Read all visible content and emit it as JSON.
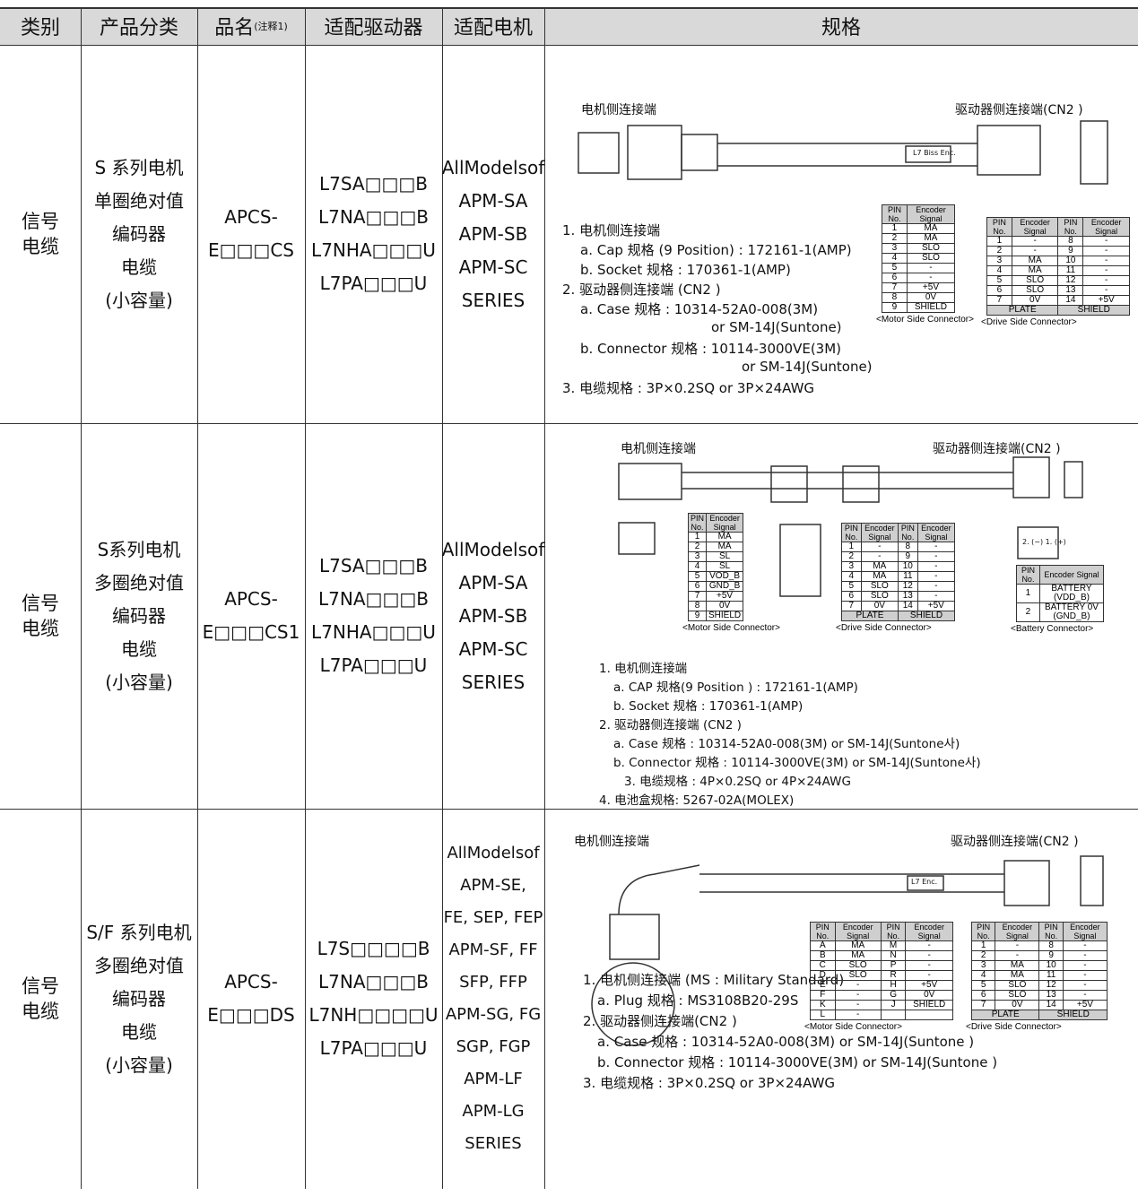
{
  "header": {
    "columns": [
      "类别",
      "产品分类",
      "品名",
      "适配驱动器",
      "适配电机",
      "规格"
    ],
    "note": "(注释1)"
  },
  "rows": [
    {
      "category": [
        "信号",
        "电缆"
      ],
      "product_class": [
        "S 系列电机",
        "单圈绝对值",
        "编码器",
        "电缆",
        "(小容量)"
      ],
      "name": [
        "APCS-",
        "E□□□CS"
      ],
      "drivers": [
        "L7SA□□□B",
        "L7NA□□□B",
        "L7NHA□□□U",
        "L7PA□□□U"
      ],
      "motors": [
        "AllModelsof",
        "APM-SA",
        "APM-SB",
        "APM-SC",
        "SERIES"
      ],
      "spec": {
        "motor_side": "电机侧连接端",
        "drive_side": "驱动器侧连接端(CN2 )",
        "cable_tag": "L7 Biss Enc.",
        "notes": [
          "1. 电机侧连接端",
          "a. Cap 规格 (9 Position) : 172161-1(AMP)",
          "b. Socket 规格 : 170361-1(AMP)",
          "2. 驱动器侧连接端 (CN2 )",
          "a. Case 规格 : 10314-52A0-008(3M)",
          "or SM-14J(Suntone)",
          "b. Connector 规格 : 10114-3000VE(3M)",
          "or SM-14J(Suntone)",
          "3. 电缆规格 : 3P×0.2SQ or 3P×24AWG"
        ],
        "tables": [
          {
            "header": [
              "PIN No.",
              "Encoder Signal"
            ],
            "rows": [
              [
                "1",
                "MA"
              ],
              [
                "2",
                "MA"
              ],
              [
                "3",
                "SLO"
              ],
              [
                "4",
                "SLO"
              ],
              [
                "5",
                "-"
              ],
              [
                "6",
                "-"
              ],
              [
                "7",
                "+5V"
              ],
              [
                "8",
                "0V"
              ],
              [
                "9",
                "SHIELD"
              ]
            ],
            "caption": "<Motor Side Connector>"
          },
          {
            "header": [
              "PIN No.",
              "Encoder Signal",
              "PIN No.",
              "Encoder Signal"
            ],
            "rows": [
              [
                "1",
                "-",
                "8",
                "-"
              ],
              [
                "2",
                "-",
                "9",
                "-"
              ],
              [
                "3",
                "MA",
                "10",
                "-"
              ],
              [
                "4",
                "MA",
                "11",
                "-"
              ],
              [
                "5",
                "SLO",
                "12",
                "-"
              ],
              [
                "6",
                "SLO",
                "13",
                "-"
              ],
              [
                "7",
                "0V",
                "14",
                "+5V"
              ]
            ],
            "footer": [
              "PLATE",
              "SHIELD"
            ],
            "caption": "<Drive Side Connector>"
          }
        ]
      }
    },
    {
      "category": [
        "信号",
        "电缆"
      ],
      "product_class": [
        "S系列电机",
        "多圈绝对值",
        "编码器",
        "电缆",
        "(小容量)"
      ],
      "name": [
        "APCS-",
        "E□□□CS1"
      ],
      "drivers": [
        "L7SA□□□B",
        "L7NA□□□B",
        "L7NHA□□□U",
        "L7PA□□□U"
      ],
      "motors": [
        "AllModelsof",
        "APM-SA",
        "APM-SB",
        "APM-SC",
        "SERIES"
      ],
      "spec": {
        "motor_side": "电机侧连接端",
        "drive_side": "驱动器侧连接端(CN2 )",
        "cable_tag": "2. (−) 1. (+)",
        "notes": [
          "1. 电机侧连接端",
          "a. CAP 规格(9 Position ) : 172161-1(AMP)",
          "b. Socket 规格 : 170361-1(AMP)",
          "2. 驱动器侧连接端 (CN2 )",
          "a. Case 规格 : 10314-52A0-008(3M) or SM-14J(Suntone사)",
          "b. Connector 规格 : 10114-3000VE(3M) or SM-14J(Suntone사)",
          "3. 电缆规格 : 4P×0.2SQ or 4P×24AWG",
          "4. 电池盒规格: 5267-02A(MOLEX)"
        ],
        "tables": [
          {
            "header": [
              "PIN No.",
              "Encoder Signal"
            ],
            "rows": [
              [
                "1",
                "MA"
              ],
              [
                "2",
                "MA"
              ],
              [
                "3",
                "SL"
              ],
              [
                "4",
                "SL"
              ],
              [
                "5",
                "VOD_B"
              ],
              [
                "6",
                "GND_B"
              ],
              [
                "7",
                "+5V"
              ],
              [
                "8",
                "0V"
              ],
              [
                "9",
                "SHIELD"
              ]
            ],
            "caption": "<Motor Side Connector>"
          },
          {
            "header": [
              "PIN No.",
              "Encoder Signal",
              "PIN No.",
              "Encoder Signal"
            ],
            "rows": [
              [
                "1",
                "-",
                "8",
                "-"
              ],
              [
                "2",
                "-",
                "9",
                "-"
              ],
              [
                "3",
                "MA",
                "10",
                "-"
              ],
              [
                "4",
                "MA",
                "11",
                "-"
              ],
              [
                "5",
                "SLO",
                "12",
                "-"
              ],
              [
                "6",
                "SLO",
                "13",
                "-"
              ],
              [
                "7",
                "0V",
                "14",
                "+5V"
              ]
            ],
            "footer": [
              "PLATE",
              "SHIELD"
            ],
            "caption": "<Drive Side Connector>"
          },
          {
            "header": [
              "PIN No.",
              "Encoder Signal"
            ],
            "rows": [
              [
                "1",
                "BATTERY (VDD_B)"
              ],
              [
                "2",
                "BATTERY 0V (GND_B)"
              ]
            ],
            "caption": "<Battery Connector>"
          }
        ]
      }
    },
    {
      "category": [
        "信号",
        "电缆"
      ],
      "product_class": [
        "S/F 系列电机",
        "多圈绝对值",
        "编码器",
        "电缆",
        "(小容量)"
      ],
      "name": [
        "APCS-",
        "E□□□DS"
      ],
      "drivers": [
        "L7S□□□□B",
        "L7NA□□□B",
        "L7NH□□□□U",
        "L7PA□□□U"
      ],
      "motors": [
        "AllModelsof",
        "APM-SE,",
        "FE, SEP, FEP",
        "APM-SF, FF",
        "SFP, FFP",
        "APM-SG, FG",
        "SGP, FGP",
        "APM-LF",
        "APM-LG",
        "SERIES"
      ],
      "spec": {
        "motor_side": "电机侧连接端",
        "drive_side": "驱动器侧连接端(CN2 )",
        "cable_tag": "L7 Enc.",
        "notes": [
          "1. 电机侧连接端 (MS : Military Standard)",
          "a. Plug 规格 : MS3108B20-29S",
          "2. 驱动器侧连接端(CN2 )",
          "a. Case 规格 : 10314-52A0-008(3M) or SM-14J(Suntone )",
          "b. Connector 规格 : 10114-3000VE(3M) or SM-14J(Suntone )",
          "3. 电缆规格 : 3P×0.2SQ or 3P×24AWG"
        ],
        "tables": [
          {
            "header": [
              "PIN No.",
              "Encoder Signal",
              "PIN No.",
              "Encoder Signal"
            ],
            "rows": [
              [
                "A",
                "MA",
                "M",
                "-"
              ],
              [
                "B",
                "MA",
                "N",
                "-"
              ],
              [
                "C",
                "SLO",
                "P",
                "-"
              ],
              [
                "D",
                "SLO",
                "R",
                "-"
              ],
              [
                "E",
                "-",
                "H",
                "+5V"
              ],
              [
                "F",
                "-",
                "G",
                "0V"
              ],
              [
                "K",
                "-",
                "J",
                "SHIELD"
              ],
              [
                "L",
                "-"
              ]
            ],
            "caption": "<Motor Side Connector>"
          },
          {
            "header": [
              "PIN No.",
              "Encoder Signal",
              "PIN No.",
              "Encoder Signal"
            ],
            "rows": [
              [
                "1",
                "-",
                "8",
                "-"
              ],
              [
                "2",
                "-",
                "9",
                "-"
              ],
              [
                "3",
                "MA",
                "10",
                "-"
              ],
              [
                "4",
                "MA",
                "11",
                "-"
              ],
              [
                "5",
                "SLO",
                "12",
                "-"
              ],
              [
                "6",
                "SLO",
                "13",
                "-"
              ],
              [
                "7",
                "0V",
                "14",
                "+5V"
              ]
            ],
            "footer": [
              "PLATE",
              "SHIELD"
            ],
            "caption": "<Drive Side Connector>"
          }
        ]
      }
    }
  ]
}
